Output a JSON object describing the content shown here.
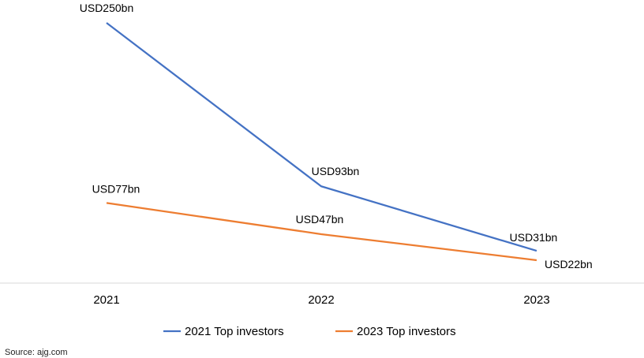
{
  "chart_data": {
    "type": "line",
    "categories": [
      "2021",
      "2022",
      "2023"
    ],
    "series": [
      {
        "name": "2021 Top investors",
        "color": "#4472C4",
        "values": [
          250,
          93,
          31
        ],
        "labels": [
          "USD250bn",
          "USD93bn",
          "USD31bn"
        ]
      },
      {
        "name": "2023 Top investors",
        "color": "#ED7D31",
        "values": [
          77,
          47,
          22
        ],
        "labels": [
          "USD77bn",
          "USD47bn",
          "USD22bn"
        ]
      }
    ],
    "title": "",
    "xlabel": "",
    "ylabel": "",
    "ylim": [
      0,
      250
    ],
    "grid": false,
    "legend_position": "bottom"
  },
  "source": "Source: ajg.com"
}
